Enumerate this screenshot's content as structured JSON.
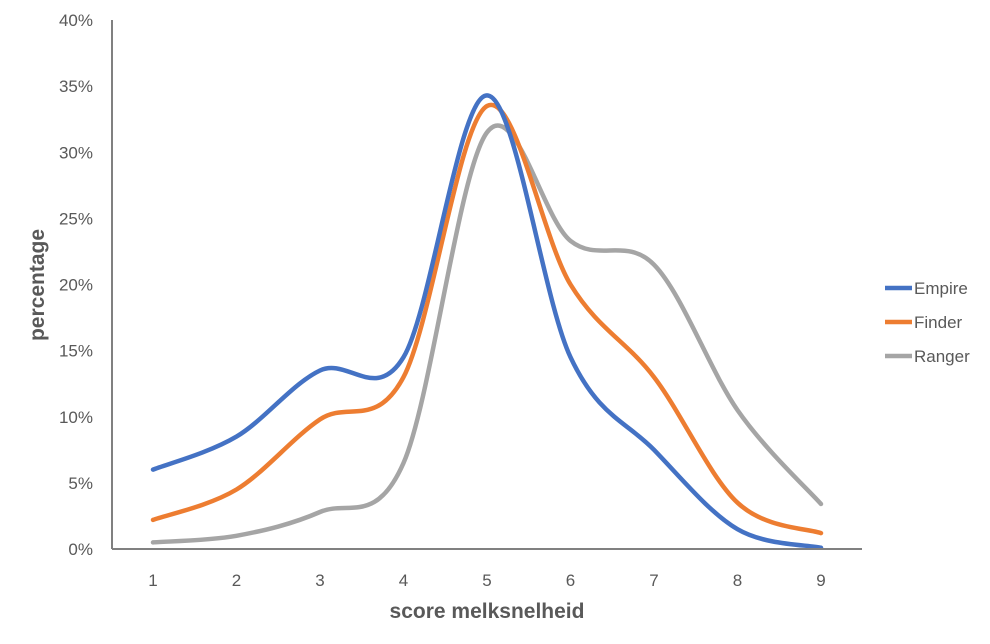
{
  "chart_data": {
    "type": "line",
    "xlabel": "score melksnelheid",
    "ylabel": "percentage",
    "x": [
      1,
      2,
      3,
      4,
      5,
      6,
      7,
      8,
      9
    ],
    "ylim": [
      0,
      40
    ],
    "yticks": [
      "0%",
      "5%",
      "10%",
      "15%",
      "20%",
      "25%",
      "30%",
      "35%",
      "40%"
    ],
    "xticks": [
      "1",
      "2",
      "3",
      "4",
      "5",
      "6",
      "7",
      "8",
      "9"
    ],
    "grid": false,
    "legend_position": "right",
    "series": [
      {
        "name": "Empire",
        "color": "#4472C4",
        "values": [
          6.0,
          8.5,
          13.5,
          14.5,
          34.3,
          14.5,
          7.5,
          1.5,
          0.1
        ]
      },
      {
        "name": "Finder",
        "color": "#ED7D31",
        "values": [
          2.2,
          4.5,
          9.8,
          13.0,
          33.5,
          20.0,
          13.0,
          3.5,
          1.2
        ]
      },
      {
        "name": "Ranger",
        "color": "#A5A5A5",
        "values": [
          0.5,
          1.0,
          2.8,
          6.5,
          31.5,
          23.3,
          21.5,
          10.5,
          3.4
        ]
      }
    ]
  }
}
